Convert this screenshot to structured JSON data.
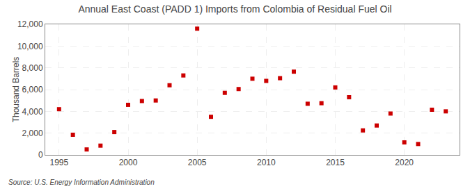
{
  "chart_data": {
    "type": "scatter",
    "title": "Annual East Coast (PADD 1) Imports from Colombia of Residual Fuel Oil",
    "ylabel": "Thousand Barrels",
    "annotations": [
      "Source: U.S. Energy Information Administration"
    ],
    "x": [
      1995,
      1996,
      1997,
      1998,
      1999,
      2000,
      2001,
      2002,
      2003,
      2004,
      2005,
      2006,
      2007,
      2008,
      2009,
      2010,
      2011,
      2012,
      2013,
      2014,
      2015,
      2016,
      2017,
      2018,
      2019,
      2020,
      2021,
      2022,
      2023
    ],
    "values": [
      4200,
      1850,
      500,
      850,
      2100,
      4600,
      4950,
      5000,
      6400,
      7300,
      11600,
      3500,
      5700,
      6050,
      7000,
      6800,
      7050,
      7650,
      4700,
      4750,
      6200,
      5300,
      2250,
      2700,
      3800,
      1150,
      1000,
      4150,
      4000
    ],
    "color": "#cc0000",
    "marker": "square",
    "xlim": [
      1994.0,
      2024.0
    ],
    "xticks": [
      1995,
      2000,
      2005,
      2010,
      2015,
      2020
    ],
    "ylim": [
      0,
      12000
    ],
    "yticks": [
      0,
      {
        "value": 2000,
        "label": "2,000"
      },
      {
        "value": 4000,
        "label": "4,000"
      },
      {
        "value": 6000,
        "label": "6,000"
      },
      {
        "value": 8000,
        "label": "8,000"
      },
      {
        "value": 10000,
        "label": "10,000"
      },
      {
        "value": 12000,
        "label": "12,000"
      }
    ],
    "grid": true
  }
}
